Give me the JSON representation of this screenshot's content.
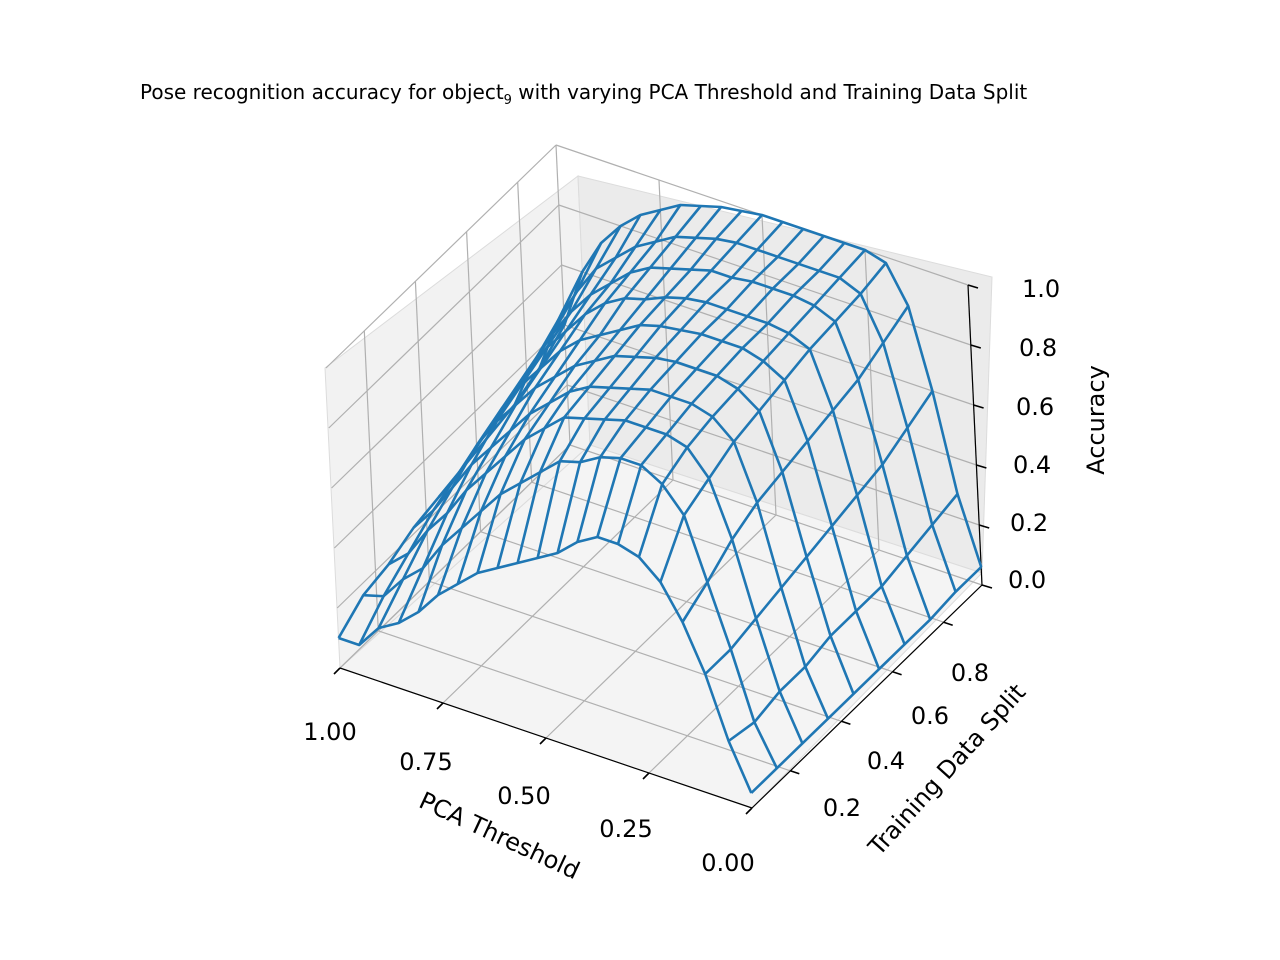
{
  "chart_data": {
    "type": "wireframe3d",
    "title_main": "Pose recognition accuracy for object",
    "title_sub": "9",
    "title_rest": " with varying PCA Threshold and Training Data Split",
    "xlabel": "PCA Threshold",
    "ylabel": "Training Data Split",
    "zlabel": "Accuracy",
    "xlim": [
      0.0,
      1.0
    ],
    "ylim": [
      0.05,
      0.95
    ],
    "zlim": [
      0.0,
      1.0
    ],
    "xticks": [
      "1.00",
      "0.75",
      "0.50",
      "0.25",
      "0.00"
    ],
    "yticks": [
      "0.2",
      "0.4",
      "0.6",
      "0.8"
    ],
    "zticks": [
      "0.0",
      "0.2",
      "0.4",
      "0.6",
      "0.8",
      "1.0"
    ],
    "grid": true,
    "line_color": "#1f77b4",
    "pca_threshold": [
      1.0,
      0.95,
      0.9,
      0.85,
      0.8,
      0.75,
      0.7,
      0.65,
      0.6,
      0.55,
      0.5,
      0.45,
      0.4,
      0.35,
      0.3,
      0.25,
      0.2,
      0.15,
      0.1,
      0.05,
      0.0
    ],
    "training_data_split": [
      0.05,
      0.15,
      0.25,
      0.35,
      0.45,
      0.55,
      0.65,
      0.75,
      0.85,
      0.95
    ],
    "accuracy": [
      [
        0.1,
        0.1,
        0.18,
        0.22,
        0.28,
        0.36,
        0.42,
        0.48,
        0.52,
        0.56,
        0.6,
        0.64,
        0.7,
        0.74,
        0.74,
        0.72,
        0.66,
        0.55,
        0.4,
        0.2,
        0.05
      ],
      [
        0.16,
        0.18,
        0.26,
        0.32,
        0.42,
        0.5,
        0.58,
        0.66,
        0.72,
        0.78,
        0.84,
        0.86,
        0.9,
        0.92,
        0.92,
        0.88,
        0.8,
        0.6,
        0.4,
        0.18,
        0.05
      ],
      [
        0.18,
        0.24,
        0.34,
        0.42,
        0.52,
        0.6,
        0.68,
        0.76,
        0.82,
        0.88,
        0.9,
        0.92,
        0.94,
        0.94,
        0.94,
        0.92,
        0.84,
        0.66,
        0.42,
        0.2,
        0.05
      ],
      [
        0.22,
        0.3,
        0.4,
        0.5,
        0.58,
        0.66,
        0.74,
        0.8,
        0.86,
        0.9,
        0.92,
        0.94,
        0.96,
        0.96,
        0.96,
        0.94,
        0.88,
        0.7,
        0.44,
        0.2,
        0.05
      ],
      [
        0.24,
        0.34,
        0.46,
        0.56,
        0.64,
        0.72,
        0.78,
        0.84,
        0.88,
        0.92,
        0.94,
        0.96,
        0.97,
        0.97,
        0.97,
        0.95,
        0.9,
        0.72,
        0.46,
        0.22,
        0.05
      ],
      [
        0.26,
        0.38,
        0.5,
        0.6,
        0.68,
        0.76,
        0.82,
        0.86,
        0.9,
        0.94,
        0.96,
        0.97,
        0.98,
        0.98,
        0.98,
        0.96,
        0.92,
        0.74,
        0.48,
        0.22,
        0.05
      ],
      [
        0.28,
        0.42,
        0.54,
        0.64,
        0.72,
        0.8,
        0.86,
        0.9,
        0.92,
        0.95,
        0.97,
        0.98,
        0.98,
        0.98,
        0.98,
        0.97,
        0.94,
        0.76,
        0.5,
        0.22,
        0.05
      ],
      [
        0.3,
        0.46,
        0.58,
        0.68,
        0.76,
        0.82,
        0.88,
        0.92,
        0.94,
        0.96,
        0.98,
        0.98,
        0.99,
        0.99,
        0.99,
        0.98,
        0.95,
        0.78,
        0.52,
        0.24,
        0.05
      ],
      [
        0.34,
        0.52,
        0.64,
        0.74,
        0.8,
        0.86,
        0.9,
        0.94,
        0.96,
        0.98,
        0.99,
        0.99,
        0.99,
        0.99,
        0.99,
        0.99,
        0.96,
        0.82,
        0.56,
        0.26,
        0.06
      ],
      [
        0.4,
        0.6,
        0.72,
        0.8,
        0.86,
        0.9,
        0.94,
        0.96,
        0.98,
        0.99,
        1.0,
        1.0,
        1.0,
        1.0,
        1.0,
        1.0,
        0.98,
        0.86,
        0.6,
        0.28,
        0.06
      ]
    ]
  }
}
